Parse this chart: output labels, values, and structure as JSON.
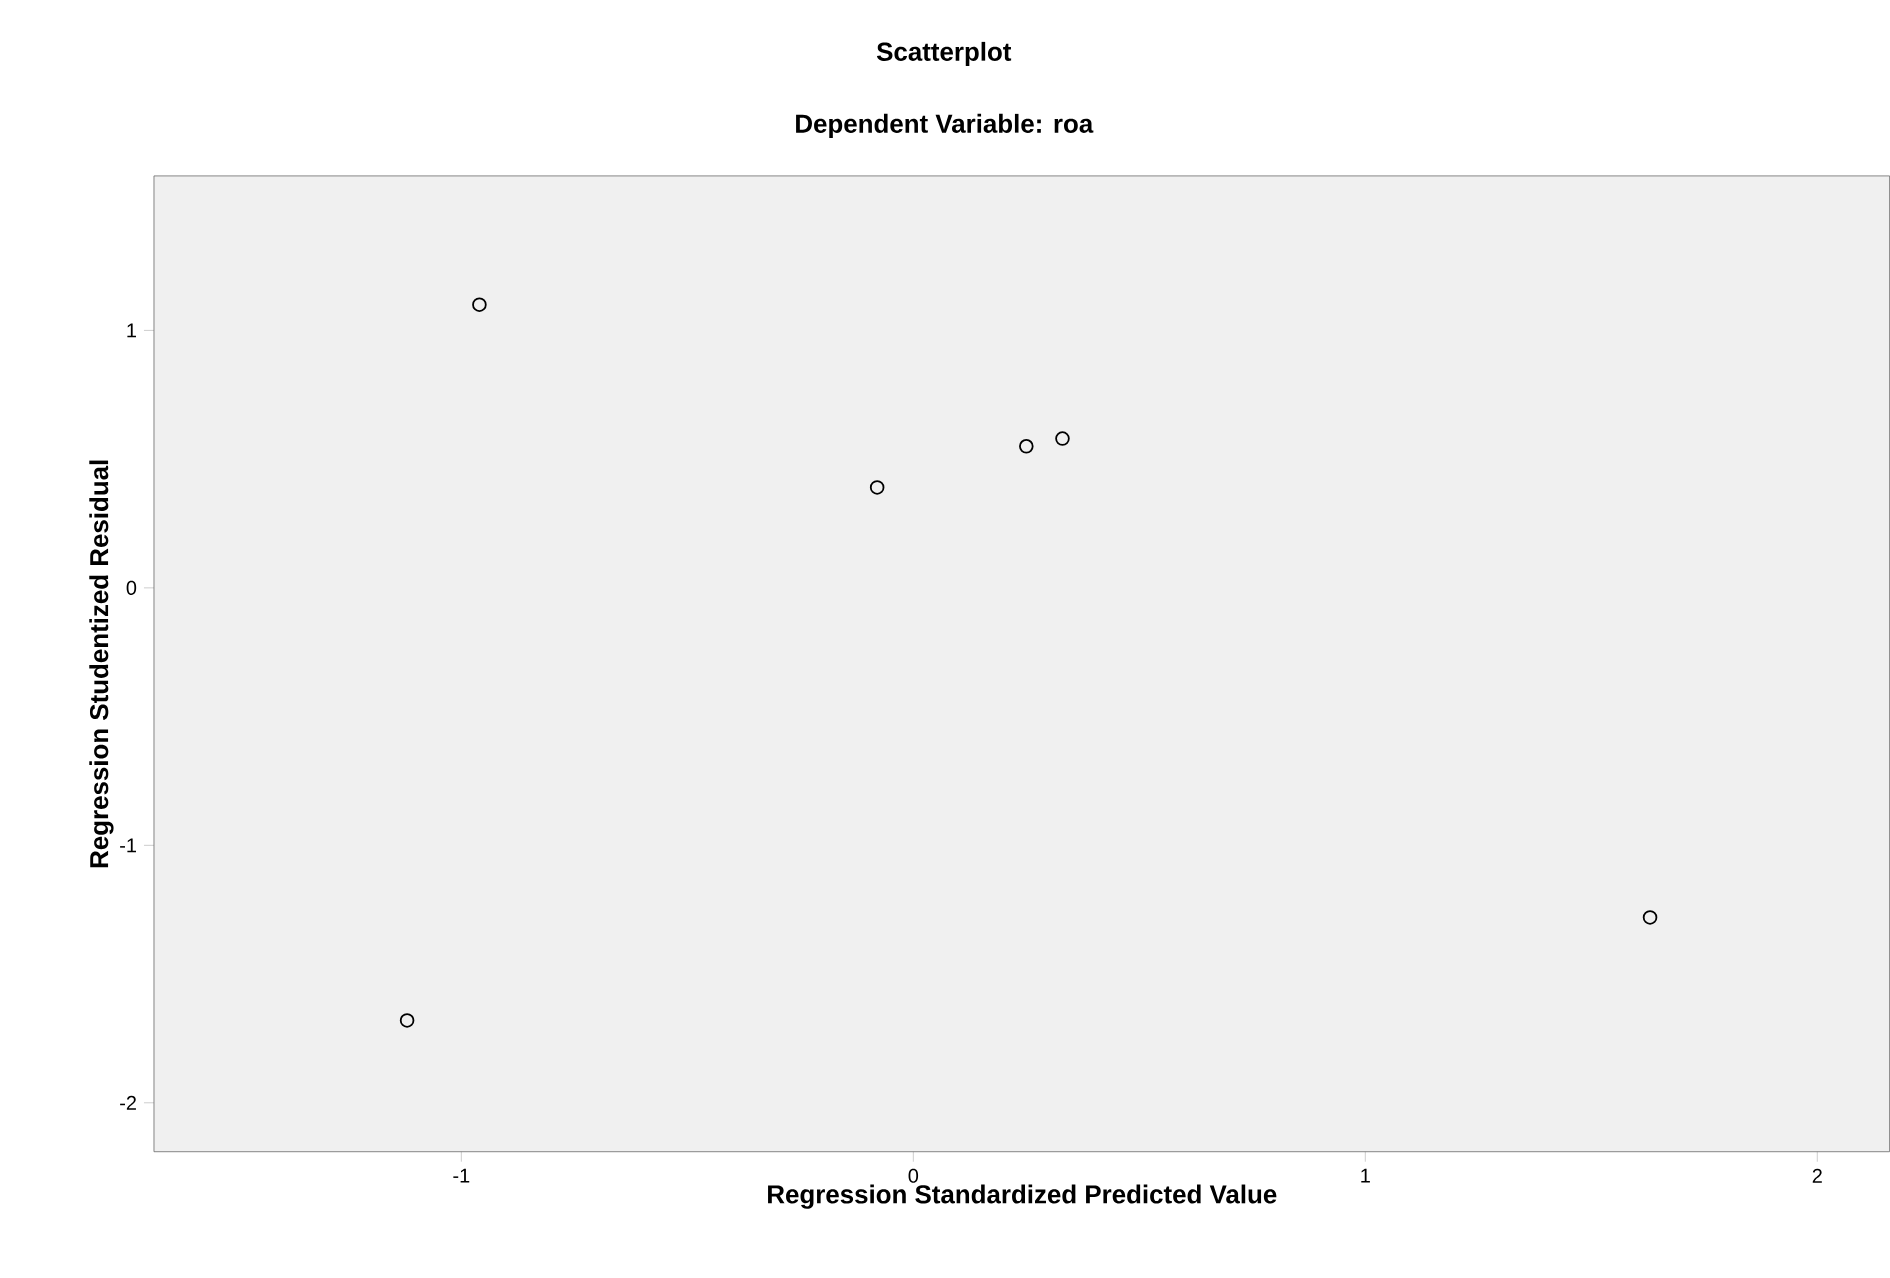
{
  "chart_data": {
    "type": "scatter",
    "title": "Scatterplot",
    "subtitle": "Dependent Variable: roa",
    "xlabel": "Regression Standardized Predicted Value",
    "ylabel": "Regression Studentized Residual",
    "x": [
      -0.96,
      -0.08,
      0.25,
      0.33,
      -1.12,
      1.63
    ],
    "series": [
      {
        "color": "#000000",
        "values": [
          1.1,
          0.39,
          0.55,
          0.58,
          -1.68,
          -1.28
        ]
      }
    ],
    "xlim": [
      -1.68,
      2.16
    ],
    "ylim": [
      -2.19,
      1.6
    ],
    "xticks": [
      -1,
      0,
      1,
      2
    ],
    "yticks": [
      -2,
      -1,
      0,
      1
    ],
    "marker": "circle",
    "grid": false
  }
}
